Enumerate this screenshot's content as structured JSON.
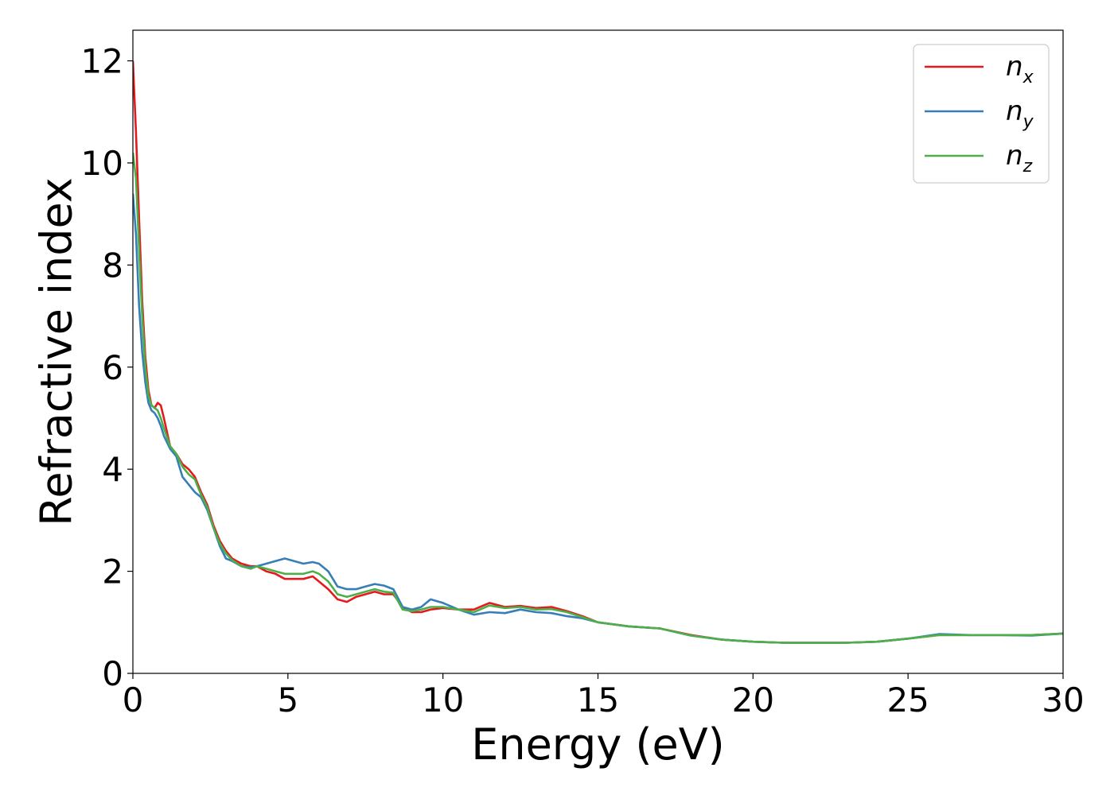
{
  "chart_data": {
    "type": "line",
    "title": "",
    "xlabel": "Energy (eV)",
    "ylabel": "Refractive index",
    "xlim": [
      0,
      30
    ],
    "ylim": [
      0,
      12.6
    ],
    "xticks": [
      0,
      5,
      10,
      15,
      20,
      25,
      30
    ],
    "yticks": [
      0,
      2,
      4,
      6,
      8,
      10,
      12
    ],
    "grid": false,
    "legend_position": "top-right",
    "series": [
      {
        "name": "n",
        "subscript": "x",
        "color": "#e41a1c",
        "x": [
          0,
          0.1,
          0.2,
          0.3,
          0.4,
          0.5,
          0.6,
          0.7,
          0.8,
          0.9,
          1.0,
          1.2,
          1.4,
          1.6,
          1.8,
          2.0,
          2.2,
          2.4,
          2.6,
          2.8,
          3.0,
          3.2,
          3.5,
          3.8,
          4.0,
          4.3,
          4.6,
          4.9,
          5.2,
          5.5,
          5.8,
          6.0,
          6.3,
          6.6,
          6.9,
          7.2,
          7.5,
          7.8,
          8.1,
          8.4,
          8.7,
          9.0,
          9.3,
          9.6,
          10.0,
          10.5,
          11.0,
          11.5,
          12.0,
          12.5,
          13.0,
          13.5,
          14.0,
          14.5,
          15.0,
          16.0,
          17.0,
          18.0,
          19.0,
          20.0,
          21.0,
          22.0,
          23.0,
          24.0,
          25.0,
          26.0,
          27.0,
          28.0,
          29.0,
          30.0
        ],
        "y": [
          12.0,
          10.6,
          8.9,
          7.3,
          6.2,
          5.55,
          5.25,
          5.2,
          5.3,
          5.25,
          5.0,
          4.45,
          4.3,
          4.1,
          4.0,
          3.85,
          3.55,
          3.3,
          2.9,
          2.6,
          2.4,
          2.25,
          2.15,
          2.1,
          2.1,
          2.0,
          1.95,
          1.85,
          1.85,
          1.85,
          1.9,
          1.8,
          1.65,
          1.45,
          1.4,
          1.5,
          1.55,
          1.6,
          1.55,
          1.55,
          1.3,
          1.2,
          1.2,
          1.25,
          1.28,
          1.25,
          1.25,
          1.38,
          1.3,
          1.32,
          1.28,
          1.3,
          1.22,
          1.12,
          1.0,
          0.92,
          0.88,
          0.75,
          0.66,
          0.62,
          0.6,
          0.6,
          0.6,
          0.62,
          0.68,
          0.75,
          0.75,
          0.75,
          0.75,
          0.78
        ]
      },
      {
        "name": "n",
        "subscript": "y",
        "color": "#377eb8",
        "x": [
          0,
          0.1,
          0.2,
          0.3,
          0.4,
          0.5,
          0.6,
          0.7,
          0.8,
          0.9,
          1.0,
          1.2,
          1.4,
          1.6,
          1.8,
          2.0,
          2.2,
          2.4,
          2.6,
          2.8,
          3.0,
          3.2,
          3.5,
          3.8,
          4.0,
          4.3,
          4.6,
          4.9,
          5.2,
          5.5,
          5.8,
          6.0,
          6.3,
          6.6,
          6.9,
          7.2,
          7.5,
          7.8,
          8.1,
          8.4,
          8.7,
          9.0,
          9.3,
          9.6,
          10.0,
          10.5,
          11.0,
          11.5,
          12.0,
          12.5,
          13.0,
          13.5,
          14.0,
          14.5,
          15.0,
          16.0,
          17.0,
          18.0,
          19.0,
          20.0,
          21.0,
          22.0,
          23.0,
          24.0,
          25.0,
          26.0,
          27.0,
          28.0,
          29.0,
          30.0
        ],
        "y": [
          9.4,
          8.6,
          7.2,
          6.3,
          5.7,
          5.3,
          5.15,
          5.1,
          5.0,
          4.85,
          4.65,
          4.4,
          4.25,
          3.85,
          3.7,
          3.55,
          3.45,
          3.2,
          2.85,
          2.5,
          2.25,
          2.2,
          2.1,
          2.08,
          2.1,
          2.15,
          2.2,
          2.25,
          2.2,
          2.15,
          2.18,
          2.15,
          2.0,
          1.7,
          1.65,
          1.65,
          1.7,
          1.75,
          1.72,
          1.65,
          1.3,
          1.25,
          1.3,
          1.45,
          1.38,
          1.25,
          1.15,
          1.2,
          1.18,
          1.25,
          1.2,
          1.18,
          1.12,
          1.08,
          1.0,
          0.92,
          0.88,
          0.74,
          0.66,
          0.62,
          0.6,
          0.6,
          0.6,
          0.62,
          0.68,
          0.77,
          0.75,
          0.75,
          0.74,
          0.78
        ]
      },
      {
        "name": "n",
        "subscript": "z",
        "color": "#4daf4a",
        "x": [
          0,
          0.1,
          0.2,
          0.3,
          0.4,
          0.5,
          0.6,
          0.7,
          0.8,
          0.9,
          1.0,
          1.2,
          1.4,
          1.6,
          1.8,
          2.0,
          2.2,
          2.4,
          2.6,
          2.8,
          3.0,
          3.2,
          3.5,
          3.8,
          4.0,
          4.3,
          4.6,
          4.9,
          5.2,
          5.5,
          5.8,
          6.0,
          6.3,
          6.6,
          6.9,
          7.2,
          7.5,
          7.8,
          8.1,
          8.4,
          8.7,
          9.0,
          9.3,
          9.6,
          10.0,
          10.5,
          11.0,
          11.5,
          12.0,
          12.5,
          13.0,
          13.5,
          14.0,
          14.5,
          15.0,
          16.0,
          17.0,
          18.0,
          19.0,
          20.0,
          21.0,
          22.0,
          23.0,
          24.0,
          25.0,
          26.0,
          27.0,
          28.0,
          29.0,
          30.0
        ],
        "y": [
          10.2,
          9.7,
          8.3,
          7.0,
          6.0,
          5.45,
          5.25,
          5.2,
          5.15,
          5.0,
          4.8,
          4.45,
          4.3,
          4.05,
          3.9,
          3.8,
          3.5,
          3.25,
          2.85,
          2.55,
          2.35,
          2.22,
          2.1,
          2.05,
          2.1,
          2.05,
          2.0,
          1.95,
          1.95,
          1.95,
          2.0,
          1.95,
          1.8,
          1.55,
          1.5,
          1.55,
          1.6,
          1.65,
          1.6,
          1.58,
          1.25,
          1.22,
          1.25,
          1.3,
          1.3,
          1.25,
          1.2,
          1.33,
          1.28,
          1.3,
          1.25,
          1.26,
          1.2,
          1.1,
          1.0,
          0.92,
          0.88,
          0.74,
          0.66,
          0.62,
          0.6,
          0.6,
          0.6,
          0.62,
          0.68,
          0.75,
          0.75,
          0.75,
          0.75,
          0.78
        ]
      }
    ]
  }
}
